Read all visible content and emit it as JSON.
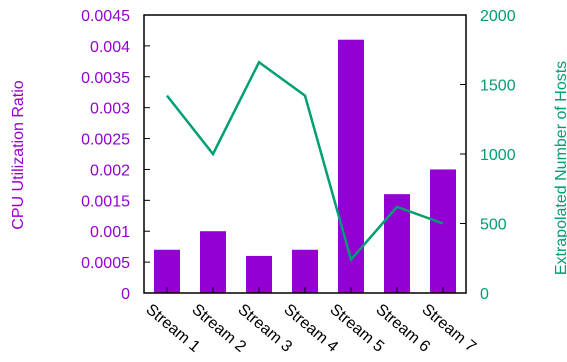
{
  "chart_data": {
    "type": "bar",
    "categories": [
      "Stream 1",
      "Stream 2",
      "Stream 3",
      "Stream 4",
      "Stream 5",
      "Stream 6",
      "Stream 7"
    ],
    "series": [
      {
        "type": "bar",
        "axis": "left",
        "color": "#9400D3",
        "values": [
          0.0007,
          0.001,
          0.0006,
          0.0007,
          0.0041,
          0.0016,
          0.002
        ]
      },
      {
        "type": "line",
        "axis": "right",
        "color": "#009E73",
        "values": [
          1420,
          1000,
          1660,
          1420,
          240,
          620,
          500
        ]
      }
    ],
    "ylabel": "CPU Utilization Ratio",
    "ylabel_right": "Extrapolated Number of Hosts",
    "ylim": [
      0,
      0.0045
    ],
    "ylim_right": [
      0,
      2000
    ],
    "yticks": [
      "0",
      "0.0005",
      "0.001",
      "0.0015",
      "0.002",
      "0.0025",
      "0.003",
      "0.0035",
      "0.004",
      "0.0045"
    ],
    "yticks_right": [
      "0",
      "500",
      "1000",
      "1500",
      "2000"
    ],
    "grid": false
  }
}
